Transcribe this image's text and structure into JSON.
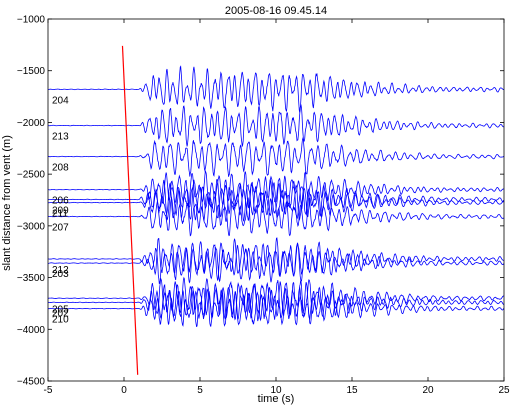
{
  "chart_data": {
    "type": "line",
    "title": "2005-08-16 09.45.14",
    "xlabel": "time (s)",
    "ylabel": "slant distance from vent (m)",
    "xlim": [
      -5,
      25
    ],
    "ylim": [
      -4500,
      -1000
    ],
    "xticks": [
      -5,
      0,
      5,
      10,
      15,
      20,
      25
    ],
    "yticks": [
      -4500,
      -4000,
      -3500,
      -3000,
      -2500,
      -2000,
      -1500,
      -1000
    ],
    "grid": false,
    "trace_color": "#0000ff",
    "onset_color": "#ff0000",
    "onset_line": {
      "x": [
        -0.1,
        0.9
      ],
      "y": [
        -1260,
        -4440
      ]
    },
    "traces": [
      {
        "label": "204",
        "offset": -1680,
        "amp": 200
      },
      {
        "label": "213",
        "offset": -2030,
        "amp": 190
      },
      {
        "label": "208",
        "offset": -2330,
        "amp": 180
      },
      {
        "label": "206",
        "offset": -2650,
        "amp": 170
      },
      {
        "label": "209",
        "offset": -2745,
        "amp": 190
      },
      {
        "label": "211",
        "offset": -2775,
        "amp": 180
      },
      {
        "label": "207",
        "offset": -2910,
        "amp": 180
      },
      {
        "label": "212",
        "offset": -3320,
        "amp": 190
      },
      {
        "label": "203",
        "offset": -3360,
        "amp": 180
      },
      {
        "label": "205",
        "offset": -3700,
        "amp": 200
      },
      {
        "label": "202",
        "offset": -3740,
        "amp": 190
      },
      {
        "label": "210",
        "offset": -3800,
        "amp": 190
      }
    ]
  }
}
